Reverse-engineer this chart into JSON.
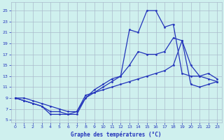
{
  "title": "Graphe des températures (°C)",
  "bg_color": "#cff0ee",
  "grid_color": "#aabbcc",
  "line_color": "#2233bb",
  "x_ticks": [
    0,
    1,
    2,
    3,
    4,
    5,
    6,
    7,
    8,
    9,
    10,
    11,
    12,
    13,
    14,
    15,
    16,
    17,
    18,
    19,
    20,
    21,
    22,
    23
  ],
  "y_ticks": [
    5,
    7,
    9,
    11,
    13,
    15,
    17,
    19,
    21,
    23,
    25
  ],
  "xlim": [
    -0.5,
    23.5
  ],
  "ylim": [
    4.5,
    26.5
  ],
  "line_min_x": [
    0,
    1,
    2,
    3,
    4,
    5,
    6,
    7,
    8,
    9,
    10,
    11,
    12,
    13,
    14,
    15,
    16,
    17,
    18,
    19,
    20,
    21,
    22,
    23
  ],
  "line_min_y": [
    9.0,
    9.0,
    8.5,
    8.0,
    7.5,
    7.0,
    6.5,
    6.5,
    9.5,
    10.0,
    10.5,
    11.0,
    11.5,
    12.0,
    12.5,
    13.0,
    13.5,
    14.0,
    15.0,
    19.5,
    11.5,
    11.0,
    11.5,
    12.0
  ],
  "line_avg_x": [
    0,
    1,
    2,
    3,
    4,
    5,
    6,
    7,
    8,
    9,
    10,
    11,
    12,
    13,
    14,
    15,
    16,
    17,
    18,
    19,
    20,
    21,
    22,
    23
  ],
  "line_avg_y": [
    9.0,
    8.5,
    8.0,
    7.5,
    6.5,
    6.5,
    6.0,
    6.5,
    9.0,
    10.0,
    11.0,
    12.0,
    13.0,
    15.0,
    17.5,
    17.0,
    17.0,
    17.5,
    20.0,
    19.5,
    15.0,
    13.0,
    12.5,
    12.0
  ],
  "line_max_x": [
    0,
    1,
    2,
    3,
    4,
    5,
    6,
    7,
    8,
    9,
    10,
    11,
    12,
    13,
    14,
    15,
    16,
    17,
    18,
    19,
    20,
    21,
    22,
    23
  ],
  "line_max_y": [
    9.0,
    8.5,
    8.0,
    7.5,
    6.0,
    6.0,
    6.0,
    6.0,
    9.0,
    10.5,
    11.5,
    12.5,
    13.0,
    21.5,
    21.0,
    25.0,
    25.0,
    22.0,
    22.5,
    13.5,
    13.0,
    13.0,
    13.5,
    12.5
  ]
}
